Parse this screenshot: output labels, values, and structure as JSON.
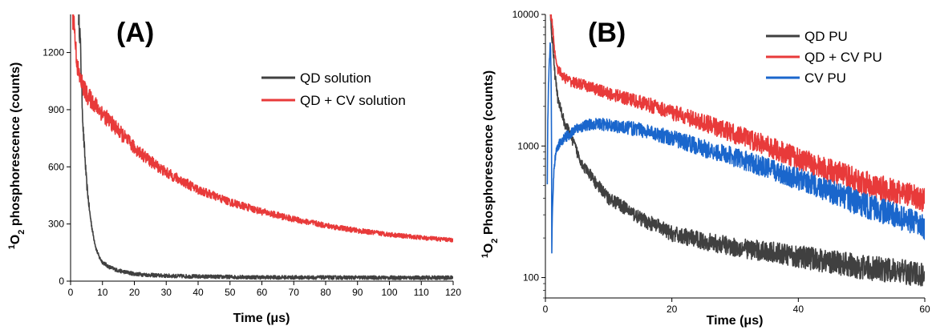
{
  "chart_data": [
    {
      "type": "line",
      "panel_label": "(A)",
      "xlabel": "Time (μs)",
      "ylabel_prefix": "1",
      "ylabel_sub": "O",
      "ylabel_subscript": "2",
      "ylabel_rest": " phosphorescence (counts)",
      "xlim": [
        0,
        120
      ],
      "ylim": [
        0,
        1400
      ],
      "y_scale": "linear",
      "x_ticks": [
        "0",
        "10",
        "20",
        "30",
        "40",
        "50",
        "60",
        "70",
        "80",
        "90",
        "100",
        "110",
        "120"
      ],
      "y_ticks": [
        "0",
        "300",
        "600",
        "900",
        "1200"
      ],
      "legend_position": "upper-right",
      "grid": false,
      "series": [
        {
          "name": "QD solution",
          "color": "#404040",
          "x": [
            2.5,
            3.0,
            3.5,
            4.0,
            5.0,
            6.0,
            7.0,
            8.0,
            9.0,
            10.0,
            12.0,
            15.0,
            20.0,
            25.0,
            30.0,
            40.0,
            50.0,
            60.0,
            80.0,
            100.0,
            120.0
          ],
          "y": [
            1400,
            1280,
            1000,
            780,
            520,
            360,
            250,
            170,
            125,
            100,
            75,
            55,
            38,
            32,
            28,
            24,
            22,
            20,
            19,
            18,
            18
          ]
        },
        {
          "name": "QD + CV solution",
          "color": "#e83a3a",
          "x": [
            0.5,
            1.0,
            1.5,
            2.0,
            2.5,
            3.0,
            5.0,
            10.0,
            15.0,
            20.0,
            25.0,
            30.0,
            40.0,
            50.0,
            60.0,
            70.0,
            80.0,
            90.0,
            100.0,
            110.0,
            120.0
          ],
          "y": [
            1400,
            1380,
            1250,
            1150,
            1090,
            1060,
            980,
            880,
            790,
            700,
            630,
            570,
            480,
            415,
            365,
            325,
            292,
            265,
            245,
            228,
            215
          ]
        }
      ]
    },
    {
      "type": "line",
      "panel_label": "(B)",
      "xlabel": "Time (μs)",
      "ylabel_prefix": "1",
      "ylabel_sub": "O",
      "ylabel_subscript": "2",
      "ylabel_rest": " Phosphorescence (counts)",
      "xlim": [
        0,
        60
      ],
      "ylim": [
        70,
        10000
      ],
      "y_scale": "log",
      "x_ticks": [
        "0",
        "20",
        "40",
        "60"
      ],
      "y_ticks": [
        "100",
        "1000",
        "10000"
      ],
      "legend_position": "upper-right",
      "grid": false,
      "series": [
        {
          "name": "QD PU",
          "color": "#404040",
          "x": [
            0.8,
            1.0,
            1.5,
            2.0,
            3.0,
            4.0,
            5.0,
            6.0,
            8.0,
            10.0,
            15.0,
            20.0,
            25.0,
            30.0,
            40.0,
            50.0,
            60.0
          ],
          "y": [
            10000,
            7000,
            3500,
            2200,
            1500,
            1200,
            900,
            700,
            520,
            400,
            280,
            215,
            190,
            170,
            145,
            120,
            105
          ]
        },
        {
          "name": "QD + CV PU",
          "color": "#e83a3a",
          "x": [
            0.8,
            1.0,
            1.5,
            2.0,
            3.0,
            4.0,
            5.0,
            8.0,
            10.0,
            15.0,
            20.0,
            25.0,
            30.0,
            35.0,
            40.0,
            45.0,
            50.0,
            55.0,
            60.0
          ],
          "y": [
            10000,
            9000,
            5000,
            3800,
            3300,
            3100,
            3000,
            2700,
            2500,
            2150,
            1800,
            1500,
            1230,
            1000,
            800,
            650,
            530,
            450,
            390
          ]
        },
        {
          "name": "CV PU",
          "color": "#1a66cc",
          "x": [
            0.3,
            0.5,
            0.8,
            1.0,
            1.2,
            1.5,
            2.0,
            3.0,
            4.0,
            5.0,
            6.0,
            8.0,
            10.0,
            15.0,
            20.0,
            25.0,
            30.0,
            35.0,
            40.0,
            45.0,
            50.0,
            55.0,
            60.0
          ],
          "y": [
            520,
            3000,
            6500,
            130,
            450,
            800,
            1000,
            1150,
            1250,
            1350,
            1420,
            1480,
            1440,
            1330,
            1150,
            960,
            820,
            680,
            560,
            450,
            360,
            300,
            240
          ]
        }
      ]
    }
  ]
}
